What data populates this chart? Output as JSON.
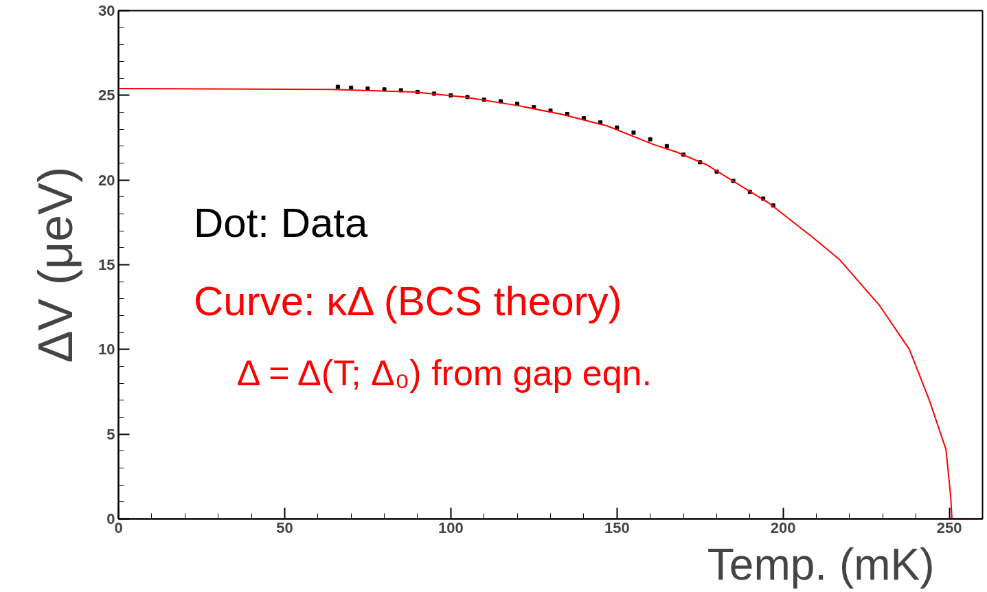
{
  "chart_data": {
    "type": "line",
    "xlabel": "Temp. (mK)",
    "ylabel": "ΔV (μeV)",
    "xlim": [
      0,
      260
    ],
    "ylim": [
      0,
      30
    ],
    "xticks": [
      0,
      50,
      100,
      150,
      200,
      250
    ],
    "yticks": [
      0,
      5,
      10,
      15,
      20,
      25,
      30
    ],
    "grid": false,
    "legend": "left",
    "series": [
      {
        "name": "Dot: Data",
        "type": "scatter",
        "marker": "square",
        "color": "#000000",
        "x": [
          66,
          70,
          75,
          80,
          85,
          90,
          95,
          100,
          105,
          110,
          115,
          120,
          125,
          130,
          135,
          140,
          145,
          150,
          155,
          160,
          165,
          170,
          175,
          180,
          185,
          190,
          194,
          197
        ],
        "values": [
          25.5,
          25.45,
          25.4,
          25.35,
          25.3,
          25.2,
          25.1,
          25.0,
          24.9,
          24.75,
          24.65,
          24.5,
          24.3,
          24.1,
          23.9,
          23.65,
          23.4,
          23.1,
          22.8,
          22.4,
          22.0,
          21.5,
          21.05,
          20.5,
          19.95,
          19.3,
          18.9,
          18.5
        ]
      },
      {
        "name": "Curve: κΔ (BCS theory)",
        "color": "#ff0000",
        "x": [
          0,
          64,
          89,
          104,
          120,
          133,
          147,
          161,
          168,
          177,
          196,
          209,
          217,
          229,
          238,
          244,
          249,
          250.4,
          250.8,
          260
        ],
        "values": [
          25.4,
          25.35,
          25.2,
          24.9,
          24.4,
          23.9,
          23.2,
          22.1,
          21.65,
          20.9,
          18.6,
          16.6,
          15.3,
          12.6,
          10.0,
          7.0,
          4.1,
          1.35,
          0,
          0
        ]
      }
    ],
    "annotations": [
      "Δ = Δ(T; Δ₀) from gap eqn."
    ]
  }
}
